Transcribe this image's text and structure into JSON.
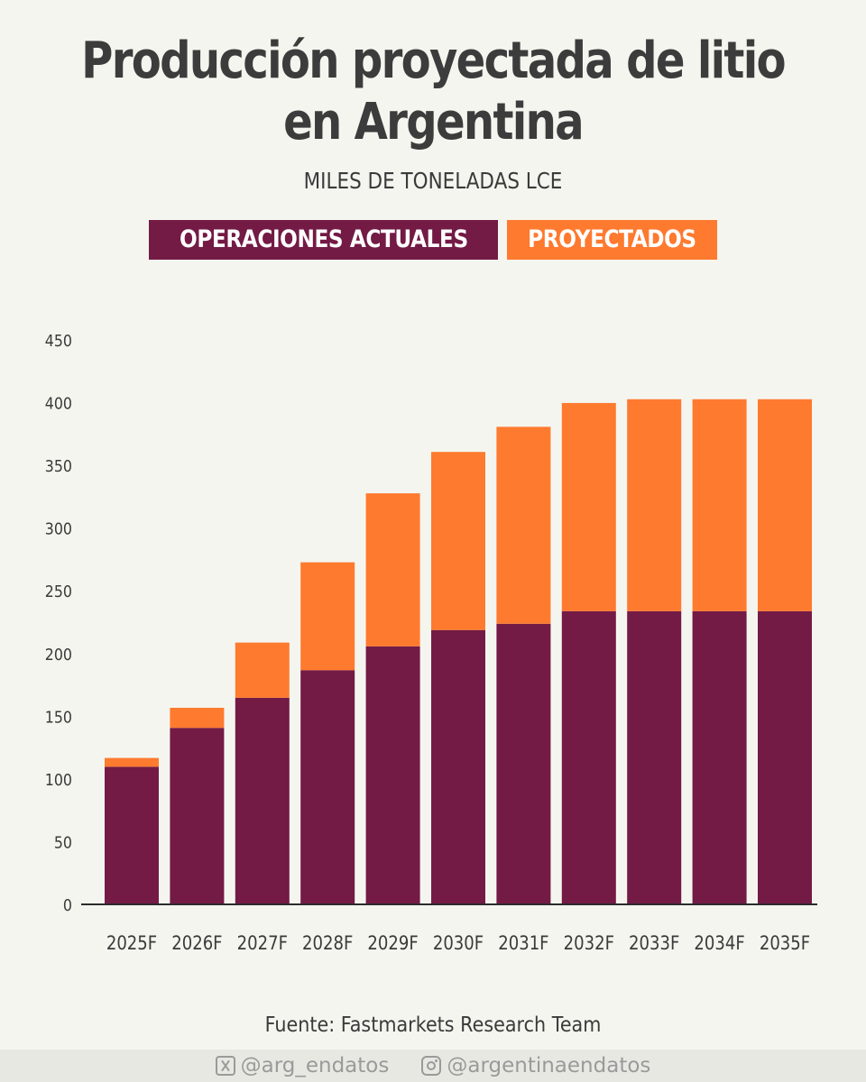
{
  "header": {
    "title_line1": "Producción proyectada de litio",
    "title_line2": "en Argentina",
    "subtitle": "MILES DE TONELADAS LCE"
  },
  "legend": {
    "current": "OPERACIONES ACTUALES",
    "projected": "PROYECTADOS"
  },
  "colors": {
    "current": "#731a45",
    "projected": "#fe7a2f",
    "axis": "#2b2b2b",
    "text": "#3a3a3a"
  },
  "chart_data": {
    "type": "bar",
    "stacked": true,
    "categories": [
      "2025F",
      "2026F",
      "2027F",
      "2028F",
      "2029F",
      "2030F",
      "2031F",
      "2032F",
      "2033F",
      "2034F",
      "2035F"
    ],
    "series": [
      {
        "name": "OPERACIONES ACTUALES",
        "values": [
          109,
          140,
          164,
          186,
          205,
          218,
          223,
          233,
          233,
          233,
          233
        ]
      },
      {
        "name": "PROYECTADOS",
        "values": [
          7,
          16,
          44,
          86,
          122,
          142,
          157,
          166,
          169,
          169,
          169
        ]
      }
    ],
    "ylim": [
      0,
      450
    ],
    "yticks": [
      0,
      50,
      100,
      150,
      200,
      250,
      300,
      350,
      400,
      450
    ],
    "grid": false
  },
  "source": "Fuente: Fastmarkets Research Team",
  "footer": {
    "twitter_icon": "x-icon",
    "twitter": "@arg_endatos",
    "instagram_icon": "instagram-icon",
    "instagram": "@argentinaendatos"
  }
}
